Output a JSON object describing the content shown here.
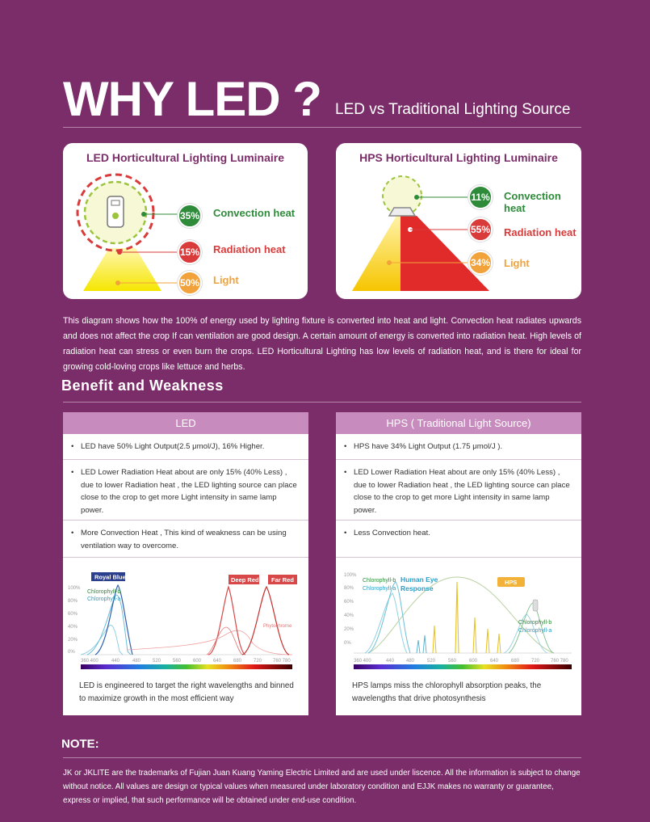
{
  "header": {
    "title": "WHY LED ?",
    "subtitle": "LED vs Traditional Lighting Source"
  },
  "led_card": {
    "title": "LED Horticultural Lighting Luminaire",
    "items": [
      {
        "pct": "35%",
        "label": "Convection heat"
      },
      {
        "pct": "15%",
        "label": "Radiation heat"
      },
      {
        "pct": "50%",
        "label": "Light"
      }
    ]
  },
  "hps_card": {
    "title": "HPS Horticultural Lighting Luminaire",
    "items": [
      {
        "pct": "11%",
        "label": "Convection heat"
      },
      {
        "pct": "55%",
        "label": "Radiation heat"
      },
      {
        "pct": "34%",
        "label": "Light"
      }
    ]
  },
  "description": "This diagram shows how the 100% of energy used by lighting fixture is converted into heat and light. Convection heat radiates upwards and does not affect the crop If can ventilation are good design. A certain amount of energy is converted into radiation heat. High levels of radiation heat can stress or even burn the crops. LED Horticultural Lighting has low levels of radiation heat, and is there for ideal for growing cold-loving crops like lettuce and herbs.",
  "benefit_title": "Benefit  and  Weakness",
  "led_column": {
    "header": "LED",
    "rows": [
      "LED have 50% Light Output(2.5 μmol/J), 16% Higher.",
      "LED Lower Radiation Heat about are only 15% (40% Less) , due to lower Radiation heat , the LED lighting source can  place close to the crop to get more Light intensity in same lamp power.",
      "More Convection Heat , This kind of weakness can be using ventilation way to overcome."
    ],
    "caption": "LED is engineered to target the right wavelengths and binned to maximize growth in the most efficient way"
  },
  "hps_column": {
    "header": "HPS ( Traditional Light Source)",
    "rows": [
      "HPS have 34% Light Output (1.75 μmol/J ).",
      "LED Lower Radiation Heat about are only 15% (40% Less) , due to lower Radiation heat , the LED lighting source can  place close to the crop to get more Light intensity in same lamp power.",
      "Less Convection heat."
    ],
    "caption": "HPS lamps miss the chlorophyll absorption peaks, the wavelengths that drive photosynthesis"
  },
  "led_spectrum": {
    "tags": [
      "Royal Blue",
      "Deep Red",
      "Far Red"
    ],
    "labels": [
      "Chlorophyll-b",
      "Chlorophyll-a",
      "Phytochrome"
    ],
    "yticks": [
      "100%",
      "80%",
      "60%",
      "40%",
      "20%",
      "0%"
    ],
    "xticks": [
      "360 400",
      "440",
      "480",
      "520",
      "560",
      "600",
      "640",
      "680",
      "720",
      "760 780"
    ]
  },
  "hps_spectrum": {
    "tags": [
      "HPS"
    ],
    "labels": [
      "Chlorophyll-b",
      "Chlorophyll-a",
      "Human Eye",
      "Response",
      "Chlorophyll-b",
      "Chlorophyll-a"
    ],
    "yticks": [
      "100%",
      "80%",
      "60%",
      "40%",
      "20%",
      "0%"
    ],
    "xticks": [
      "360 400",
      "440",
      "480",
      "520",
      "560",
      "600",
      "640",
      "680",
      "720",
      "760 780"
    ]
  },
  "note": {
    "title": "NOTE:",
    "text": "JK or JKLITE are the trademarks of Fujian Juan Kuang Yaming Electric Limited and are used under liscence. All the information is subject to change without notice. All values are design or typical values when measured under laboratory condition and EJJK makes no warranty or guarantee, express or implied, that such performance will be obtained under end-use condition."
  },
  "colors": {
    "background": "#7a2d68",
    "green": "#2e8b3a",
    "red": "#d93b3b",
    "orange": "#f2a23a",
    "column_header": "#c88bbd"
  }
}
